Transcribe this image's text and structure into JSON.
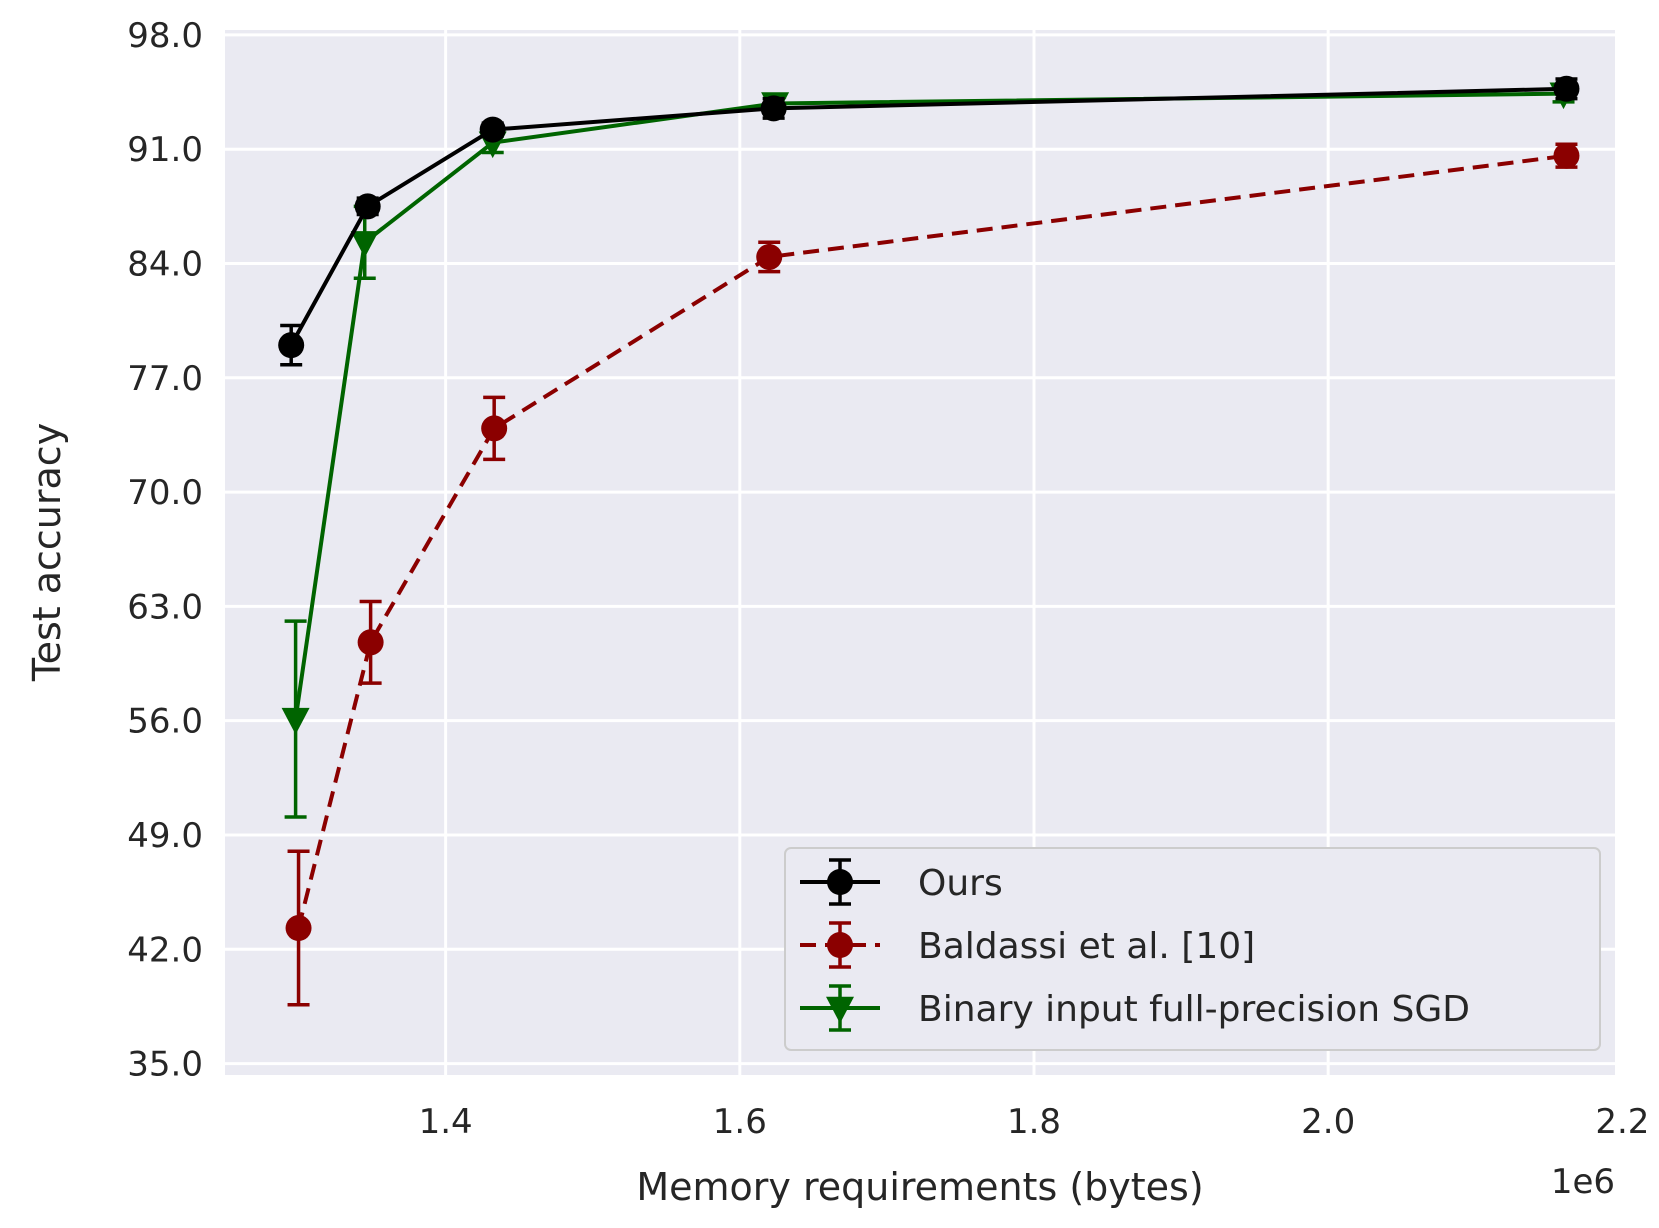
{
  "chart_data": {
    "type": "line",
    "title": "",
    "xlabel": "Memory requirements (bytes)",
    "ylabel": "Test accuracy",
    "x_offset_label": "1e6",
    "xlim": [
      1.25,
      2.195
    ],
    "ylim": [
      34.3,
      98.3
    ],
    "xticks": [
      1.4,
      1.6,
      1.8,
      2.0,
      2.2
    ],
    "xtick_labels": [
      "1.4",
      "1.6",
      "1.8",
      "2.0",
      "2.2"
    ],
    "yticks": [
      35,
      42,
      49,
      56,
      63,
      70,
      77,
      84,
      91,
      98
    ],
    "ytick_labels": [
      "35.0",
      "42.0",
      "49.0",
      "56.0",
      "63.0",
      "70.0",
      "77.0",
      "84.0",
      "91.0",
      "98.0"
    ],
    "grid": true,
    "legend_position": "bottom-right",
    "series": [
      {
        "name": "Ours",
        "color": "#000000",
        "linestyle": "solid",
        "marker": "circle",
        "x": [
          1.295,
          1.347,
          1.432,
          1.623,
          2.162
        ],
        "y": [
          79.0,
          87.5,
          92.2,
          93.5,
          94.7
        ],
        "err": [
          1.2,
          0.5,
          0.4,
          0.6,
          0.6
        ]
      },
      {
        "name": "Baldassi et al. [10]",
        "color": "#8b0000",
        "linestyle": "dashed",
        "marker": "circle",
        "x": [
          1.3,
          1.349,
          1.433,
          1.62,
          2.162
        ],
        "y": [
          43.3,
          60.8,
          73.9,
          84.4,
          90.6
        ],
        "err": [
          4.7,
          2.5,
          1.9,
          0.9,
          0.7
        ]
      },
      {
        "name": "Binary input full-precision SGD",
        "color": "#006400",
        "linestyle": "solid",
        "marker": "triangle-down",
        "x": [
          1.298,
          1.345,
          1.432,
          1.624,
          2.16
        ],
        "y": [
          56.1,
          85.3,
          91.4,
          93.8,
          94.4
        ],
        "err": [
          6.0,
          2.2,
          0.6,
          0.4,
          0.5
        ]
      }
    ]
  }
}
